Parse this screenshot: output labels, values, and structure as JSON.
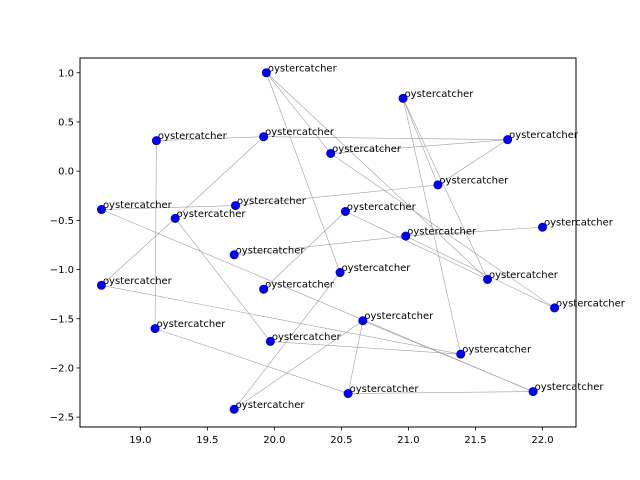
{
  "chart_data": {
    "type": "scatter",
    "title": "",
    "xlabel": "",
    "ylabel": "",
    "xlim": [
      18.55,
      22.25
    ],
    "ylim": [
      -2.6,
      1.15
    ],
    "xticks": [
      19.0,
      19.5,
      20.0,
      20.5,
      21.0,
      21.5,
      22.0
    ],
    "yticks": [
      -2.5,
      -2.0,
      -1.5,
      -1.0,
      -0.5,
      0.0,
      0.5,
      1.0
    ],
    "grid": false,
    "point_color": "#0000ff",
    "edge_color": "#a0a0a0",
    "points": [
      {
        "x": 19.94,
        "y": 1.0,
        "label": "oystercatcher"
      },
      {
        "x": 20.96,
        "y": 0.74,
        "label": "oystercatcher"
      },
      {
        "x": 19.12,
        "y": 0.31,
        "label": "oystercatcher"
      },
      {
        "x": 19.92,
        "y": 0.35,
        "label": "oystercatcher"
      },
      {
        "x": 21.74,
        "y": 0.32,
        "label": "oystercatcher"
      },
      {
        "x": 20.42,
        "y": 0.18,
        "label": "oystercatcher"
      },
      {
        "x": 21.22,
        "y": -0.14,
        "label": "oystercatcher"
      },
      {
        "x": 18.71,
        "y": -0.39,
        "label": "oystercatcher"
      },
      {
        "x": 19.71,
        "y": -0.35,
        "label": "oystercatcher"
      },
      {
        "x": 19.26,
        "y": -0.48,
        "label": "oystercatcher"
      },
      {
        "x": 20.53,
        "y": -0.41,
        "label": "oystercatcher"
      },
      {
        "x": 22.0,
        "y": -0.57,
        "label": "oystercatcher"
      },
      {
        "x": 20.98,
        "y": -0.66,
        "label": "oystercatcher"
      },
      {
        "x": 19.7,
        "y": -0.85,
        "label": "oystercatcher"
      },
      {
        "x": 20.49,
        "y": -1.03,
        "label": "oystercatcher"
      },
      {
        "x": 21.59,
        "y": -1.1,
        "label": "oystercatcher"
      },
      {
        "x": 18.71,
        "y": -1.16,
        "label": "oystercatcher"
      },
      {
        "x": 19.92,
        "y": -1.2,
        "label": "oystercatcher"
      },
      {
        "x": 22.09,
        "y": -1.39,
        "label": "oystercatcher"
      },
      {
        "x": 20.66,
        "y": -1.52,
        "label": "oystercatcher"
      },
      {
        "x": 19.11,
        "y": -1.6,
        "label": "oystercatcher"
      },
      {
        "x": 19.97,
        "y": -1.73,
        "label": "oystercatcher"
      },
      {
        "x": 21.39,
        "y": -1.86,
        "label": "oystercatcher"
      },
      {
        "x": 20.55,
        "y": -2.26,
        "label": "oystercatcher"
      },
      {
        "x": 21.93,
        "y": -2.24,
        "label": "oystercatcher"
      },
      {
        "x": 19.7,
        "y": -2.42,
        "label": "oystercatcher"
      }
    ],
    "edges": [
      [
        0,
        5
      ],
      [
        0,
        14
      ],
      [
        0,
        15
      ],
      [
        1,
        22
      ],
      [
        1,
        15
      ],
      [
        1,
        6
      ],
      [
        2,
        20
      ],
      [
        2,
        3
      ],
      [
        3,
        4
      ],
      [
        3,
        9
      ],
      [
        4,
        5
      ],
      [
        4,
        6
      ],
      [
        5,
        18
      ],
      [
        6,
        8
      ],
      [
        7,
        8
      ],
      [
        7,
        24
      ],
      [
        9,
        16
      ],
      [
        9,
        21
      ],
      [
        10,
        15
      ],
      [
        10,
        17
      ],
      [
        11,
        12
      ],
      [
        12,
        13
      ],
      [
        12,
        18
      ],
      [
        14,
        25
      ],
      [
        16,
        22
      ],
      [
        19,
        23
      ],
      [
        19,
        25
      ],
      [
        20,
        23
      ],
      [
        21,
        22
      ],
      [
        23,
        24
      ],
      [
        24,
        19
      ]
    ]
  }
}
